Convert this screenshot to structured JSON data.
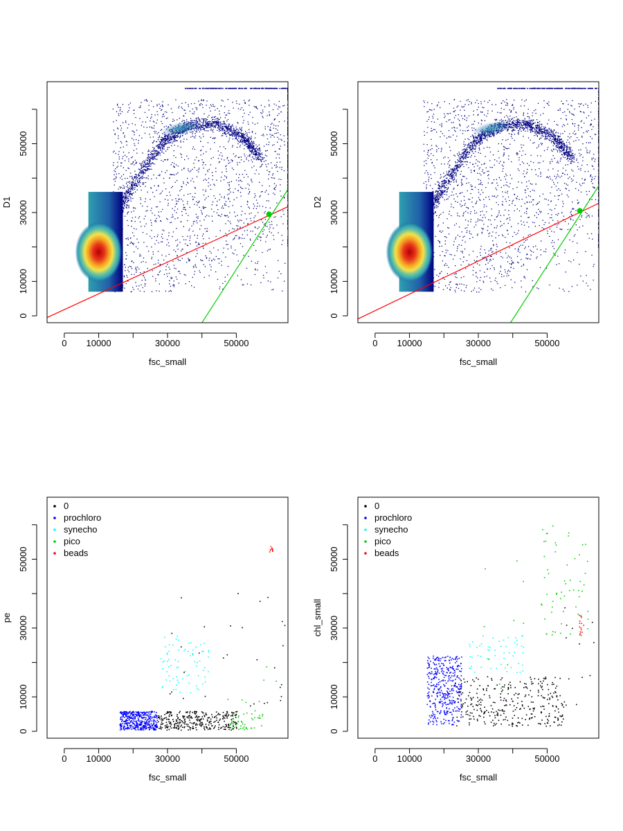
{
  "figure_colors": {
    "density_colormap": [
      "#000080",
      "#1f5fa8",
      "#2f9fb0",
      "#66c2a4",
      "#f2e24a",
      "#f5a623",
      "#e8341c",
      "#b30000"
    ],
    "point_color": "#000080"
  },
  "chart_data": [
    {
      "type": "scatter",
      "xlabel": "fsc_small",
      "ylabel": "D1",
      "xlim": [
        -5000,
        65000
      ],
      "ylim": [
        -2000,
        68000
      ],
      "xticks": [
        "0",
        "10000",
        "30000",
        "50000"
      ],
      "xtick_values": [
        0,
        10000,
        30000,
        50000
      ],
      "yticks": [
        "0",
        "10000",
        "30000",
        "50000"
      ],
      "ytick_values": [
        0,
        10000,
        30000,
        50000
      ],
      "density": {
        "rect": {
          "x": [
            7000,
            13000
          ],
          "y": [
            7000,
            36000
          ]
        },
        "core": {
          "x": 10000,
          "y": 18500
        },
        "ridge": [
          [
            14000,
            28000
          ],
          [
            20000,
            38000
          ],
          [
            28000,
            50000
          ],
          [
            35000,
            55000
          ],
          [
            44000,
            56000
          ],
          [
            52000,
            52000
          ],
          [
            57000,
            46000
          ]
        ],
        "edge_x": 65000,
        "top_y": 66000
      },
      "lines": [
        {
          "color": "#ff0000",
          "slope": 0.46,
          "intercept": 1800
        },
        {
          "color": "#00cc00",
          "slope": 1.55,
          "intercept": -64000
        }
      ],
      "highlight": {
        "x": 59500,
        "y": 29500,
        "color": "#00cc00"
      }
    },
    {
      "type": "scatter",
      "xlabel": "fsc_small",
      "ylabel": "D2",
      "xlim": [
        -5000,
        65000
      ],
      "ylim": [
        -2000,
        68000
      ],
      "xticks": [
        "0",
        "10000",
        "30000",
        "50000"
      ],
      "xtick_values": [
        0,
        10000,
        30000,
        50000
      ],
      "yticks": [
        "0",
        "10000",
        "30000",
        "50000"
      ],
      "ytick_values": [
        0,
        10000,
        30000,
        50000
      ],
      "density": {
        "rect": {
          "x": [
            7000,
            13000
          ],
          "y": [
            7000,
            36000
          ]
        },
        "core": {
          "x": 10000,
          "y": 18500
        },
        "ridge": [
          [
            14000,
            28000
          ],
          [
            20000,
            38000
          ],
          [
            28000,
            50000
          ],
          [
            35000,
            55000
          ],
          [
            44000,
            56000
          ],
          [
            52000,
            52000
          ],
          [
            57000,
            46000
          ]
        ],
        "edge_x": 65000,
        "top_y": 66000
      },
      "lines": [
        {
          "color": "#ff0000",
          "slope": 0.48,
          "intercept": 1500
        },
        {
          "color": "#00cc00",
          "slope": 1.55,
          "intercept": -63000
        }
      ],
      "highlight": {
        "x": 59500,
        "y": 30500,
        "color": "#00cc00"
      }
    },
    {
      "type": "scatter",
      "xlabel": "fsc_small",
      "ylabel": "pe",
      "xlim": [
        -5000,
        65000
      ],
      "ylim": [
        -2000,
        68000
      ],
      "xticks": [
        "0",
        "10000",
        "30000",
        "50000"
      ],
      "xtick_values": [
        0,
        10000,
        30000,
        50000
      ],
      "yticks": [
        "0",
        "10000",
        "30000",
        "50000"
      ],
      "ytick_values": [
        0,
        10000,
        30000,
        50000
      ],
      "legend": {
        "position": "top-left"
      },
      "series": [
        {
          "name": "0",
          "color": "#000000",
          "clusters": [
            {
              "n": 320,
              "x": [
                27000,
                50000
              ],
              "y": [
                500,
                6000
              ]
            },
            {
              "n": 30,
              "x": [
                30000,
                64000
              ],
              "y": [
                6000,
                42000
              ]
            }
          ]
        },
        {
          "name": "prochloro",
          "color": "#0000ff",
          "clusters": [
            {
              "n": 420,
              "x": [
                16000,
                27000
              ],
              "y": [
                500,
                6000
              ]
            }
          ]
        },
        {
          "name": "synecho",
          "color": "#00ffff",
          "clusters": [
            {
              "n": 75,
              "x": [
                28000,
                42000
              ],
              "y": [
                11000,
                28000
              ]
            }
          ]
        },
        {
          "name": "pico",
          "color": "#00cc00",
          "clusters": [
            {
              "n": 45,
              "x": [
                48000,
                58000
              ],
              "y": [
                500,
                6000
              ]
            },
            {
              "n": 8,
              "x": [
                47000,
                63000
              ],
              "y": [
                6000,
                22000
              ]
            }
          ]
        },
        {
          "name": "beads",
          "color": "#ff0000",
          "clusters": [
            {
              "n": 10,
              "x": [
                59500,
                60500
              ],
              "y": [
                52000,
                54000
              ]
            }
          ]
        }
      ]
    },
    {
      "type": "scatter",
      "xlabel": "fsc_small",
      "ylabel": "chl_small",
      "xlim": [
        -5000,
        65000
      ],
      "ylim": [
        -2000,
        68000
      ],
      "xticks": [
        "0",
        "10000",
        "30000",
        "50000"
      ],
      "xtick_values": [
        0,
        10000,
        30000,
        50000
      ],
      "yticks": [
        "0",
        "10000",
        "30000",
        "50000"
      ],
      "ytick_values": [
        0,
        10000,
        30000,
        50000
      ],
      "legend": {
        "position": "top-left"
      },
      "series": [
        {
          "name": "0",
          "color": "#000000",
          "clusters": [
            {
              "n": 330,
              "x": [
                23000,
                55000
              ],
              "y": [
                1500,
                16000
              ]
            },
            {
              "n": 15,
              "x": [
                50000,
                64000
              ],
              "y": [
                3000,
                38000
              ]
            }
          ]
        },
        {
          "name": "prochloro",
          "color": "#0000ff",
          "clusters": [
            {
              "n": 400,
              "x": [
                15000,
                25000
              ],
              "y": [
                2000,
                22000
              ]
            }
          ]
        },
        {
          "name": "synecho",
          "color": "#00ffff",
          "clusters": [
            {
              "n": 55,
              "x": [
                27000,
                43000
              ],
              "y": [
                17000,
                28000
              ]
            }
          ]
        },
        {
          "name": "pico",
          "color": "#00cc00",
          "clusters": [
            {
              "n": 60,
              "x": [
                48000,
                62000
              ],
              "y": [
                28000,
                60000
              ]
            },
            {
              "n": 10,
              "x": [
                26000,
                44000
              ],
              "y": [
                12000,
                52000
              ]
            }
          ]
        },
        {
          "name": "beads",
          "color": "#ff0000",
          "clusters": [
            {
              "n": 14,
              "x": [
                59200,
                60500
              ],
              "y": [
                28000,
                34000
              ]
            }
          ]
        }
      ]
    }
  ]
}
